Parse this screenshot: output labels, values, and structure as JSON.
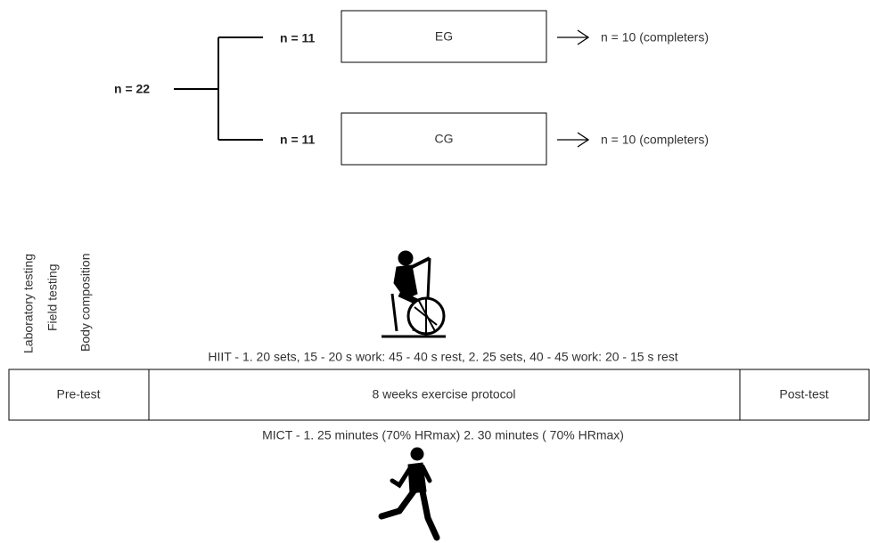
{
  "groups": {
    "total": "n = 22",
    "items": [
      {
        "n": "n = 11",
        "label": "EG",
        "outcome": "n = 10 (completers)"
      },
      {
        "n": "n = 11",
        "label": "CG",
        "outcome": "n = 10 (completers)"
      }
    ]
  },
  "measurements": [
    "Laboratory testing",
    "Field testing",
    "Body composition"
  ],
  "timeline": {
    "hiit": "HIIT - 1. 20 sets, 15 - 20 s work: 45 - 40 s rest, 2. 25 sets, 40 - 45 work: 20 - 15 s rest",
    "cells": [
      "Pre-test",
      "8 weeks exercise protocol",
      "Post-test"
    ],
    "mict": "MICT - 1. 25 minutes (70% HRmax) 2. 30 minutes ( 70% HRmax)"
  }
}
